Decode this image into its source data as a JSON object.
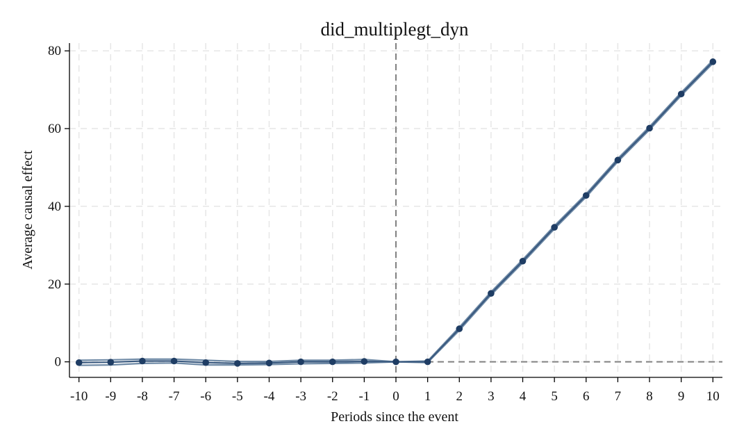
{
  "chart_data": {
    "type": "line",
    "title": "did_multiplegt_dyn",
    "xlabel": "Periods since the event",
    "ylabel": "Average causal effect",
    "xlim": [
      -10.3,
      10.3
    ],
    "ylim": [
      -4,
      82
    ],
    "x": [
      -10,
      -9,
      -8,
      -7,
      -6,
      -5,
      -4,
      -3,
      -2,
      -1,
      0,
      1,
      2,
      3,
      4,
      5,
      6,
      7,
      8,
      9,
      10
    ],
    "x_ticks": [
      "-10",
      "-9",
      "-8",
      "-7",
      "-6",
      "-5",
      "-4",
      "-3",
      "-2",
      "-1",
      "0",
      "1",
      "2",
      "3",
      "4",
      "5",
      "6",
      "7",
      "8",
      "9",
      "10"
    ],
    "y_ticks": [
      0,
      20,
      40,
      60,
      80
    ],
    "y_tick_labels": [
      "0",
      "20",
      "40",
      "60",
      "80"
    ],
    "series": [
      {
        "values": [
          -0.2,
          -0.1,
          0.2,
          0.2,
          -0.2,
          -0.4,
          -0.3,
          0.0,
          0.0,
          0.1,
          0.0,
          0.0,
          8.5,
          17.6,
          25.9,
          34.6,
          42.8,
          51.9,
          60.1,
          68.9,
          77.2
        ],
        "ci_lower": [
          -0.9,
          -0.8,
          -0.4,
          -0.3,
          -0.8,
          -0.8,
          -0.7,
          -0.5,
          -0.4,
          -0.3,
          0.0,
          -0.2,
          8.1,
          17.2,
          25.5,
          34.2,
          42.4,
          51.5,
          59.7,
          68.5,
          76.8
        ],
        "ci_upper": [
          0.4,
          0.5,
          0.7,
          0.7,
          0.4,
          0.1,
          0.1,
          0.4,
          0.4,
          0.6,
          0.0,
          0.2,
          8.9,
          18.0,
          26.3,
          35.0,
          43.2,
          52.3,
          60.5,
          69.3,
          77.6
        ]
      }
    ],
    "reference_lines": {
      "x": 0,
      "y": 0
    },
    "grid": true,
    "legend": "none",
    "colors": {
      "estimate": "#1f3d64",
      "ci": "#6f8aa6",
      "reference": "#808080",
      "grid": "#e6e6e6"
    }
  }
}
